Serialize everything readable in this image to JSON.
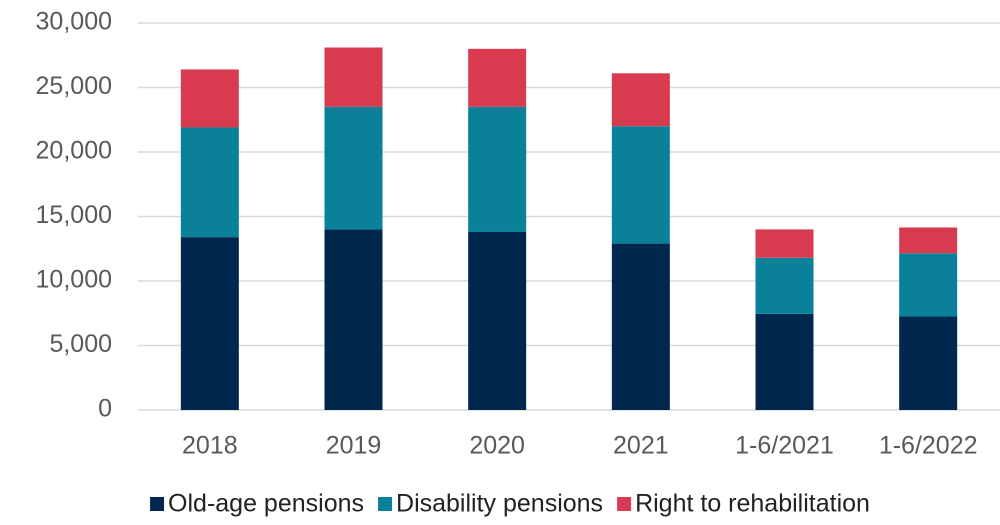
{
  "chart_data": {
    "type": "stacked_bar",
    "categories": [
      "2018",
      "2019",
      "2020",
      "2021",
      "1-6/2021",
      "1-6/2022"
    ],
    "series": [
      {
        "name": "Old-age pensions",
        "color": "#00274d",
        "values": [
          13400,
          14000,
          13800,
          12900,
          7450,
          7250
        ]
      },
      {
        "name": "Disability pensions",
        "color": "#0b8199",
        "values": [
          8500,
          9500,
          9700,
          9100,
          4350,
          4900
        ]
      },
      {
        "name": "Right to rehabilitation",
        "color": "#d83a50",
        "values": [
          4500,
          4600,
          4500,
          4100,
          2200,
          2000
        ]
      }
    ],
    "ylim": [
      0,
      30000
    ],
    "yticks": [
      0,
      {
        "value": 5000,
        "label": "5,000"
      },
      {
        "value": 10000,
        "label": "10,000"
      },
      {
        "value": 15000,
        "label": "15,000"
      },
      {
        "value": 20000,
        "label": "20,000"
      },
      {
        "value": 25000,
        "label": "25,000"
      },
      {
        "value": 30000,
        "label": "30,000"
      }
    ],
    "grid": true,
    "legend": "bottom"
  }
}
